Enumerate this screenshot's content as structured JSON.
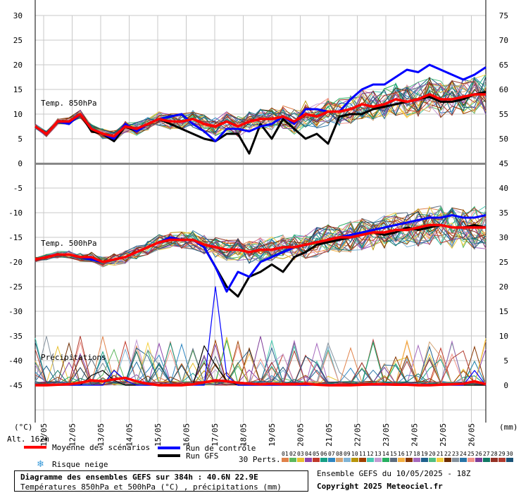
{
  "chart_data": {
    "type": "line",
    "title": "Diagramme des ensembles GEFS sur 384h : 40.6N 22.9E",
    "subtitle": "Températures 850hPa et 500hPa (°C) , précipitations (mm)",
    "run_info": "Ensemble GEFS du 10/05/2025 - 18Z",
    "copyright": "Copyright 2025 Meteociel.fr",
    "x_tick_labels": [
      "11/05",
      "12/05",
      "13/05",
      "14/05",
      "15/05",
      "16/05",
      "17/05",
      "18/05",
      "19/05",
      "20/05",
      "21/05",
      "22/05",
      "23/05",
      "24/05",
      "25/05",
      "26/05"
    ],
    "left_axis_ticks": [
      "30",
      "25",
      "20",
      "15",
      "10",
      "5",
      "0",
      "-5",
      "-10",
      "-15",
      "-20",
      "-25",
      "-30",
      "-35",
      "-40",
      "-45"
    ],
    "right_axis_ticks": [
      "75",
      "70",
      "65",
      "60",
      "55",
      "50",
      "45",
      "40",
      "35",
      "30",
      "25",
      "20",
      "15",
      "10",
      "5",
      "0"
    ],
    "left_unit": "(°C)",
    "right_unit": "(mm)",
    "altitude": "Alt. 162m",
    "panel_labels": {
      "t850": "Temp. 850hPa",
      "t500": "Temp. 500hPa",
      "precip": "Précipitations"
    },
    "legend": {
      "mean": "Moyenne des scénarios",
      "control": "Run de contrôle",
      "gfs": "Run GFS",
      "snow": "Risque neige",
      "members_label": "30 Perts.",
      "member_ids": [
        "01",
        "02",
        "03",
        "04",
        "05",
        "06",
        "07",
        "08",
        "09",
        "10",
        "11",
        "12",
        "13",
        "14",
        "15",
        "16",
        "17",
        "18",
        "19",
        "20",
        "21",
        "22",
        "23",
        "24",
        "25",
        "26",
        "27",
        "28",
        "29",
        "30"
      ]
    },
    "colors": {
      "mean": "#ff0000",
      "control": "#0000ff",
      "gfs": "#000000",
      "members": [
        "#e0824a",
        "#5cb85c",
        "#e8c030",
        "#8e44ad",
        "#c0392b",
        "#16a085",
        "#2e86c1",
        "#d4a373",
        "#7fb3d5",
        "#b7950b",
        "#a04000",
        "#48c9b0",
        "#c39bd3",
        "#27ae60",
        "#5d6d7e",
        "#f5b041",
        "#873600",
        "#a569bd",
        "#1f618d",
        "#52be80",
        "#f4d03f",
        "#6e2c00",
        "#85929e",
        "#2874a6",
        "#f1948a",
        "#7d3c98",
        "#117864",
        "#943126",
        "#b03a2e",
        "#1a5276"
      ]
    },
    "series": [
      {
        "name": "Moyenne des scénarios",
        "panel": "t850",
        "values": [
          7.5,
          6,
          8.5,
          8.5,
          10,
          7,
          6,
          5.5,
          7.5,
          7,
          8,
          9,
          8.5,
          8.5,
          9,
          8,
          7.5,
          8.5,
          7.5,
          8.5,
          9,
          9,
          9.5,
          8.5,
          10,
          9.5,
          10.5,
          10.5,
          11,
          12,
          11.5,
          12,
          13,
          12.5,
          13,
          14,
          13,
          13,
          13.5,
          14,
          14
        ]
      },
      {
        "name": "Run de contrôle",
        "panel": "t850",
        "values": [
          7.5,
          6,
          8.5,
          8,
          10,
          7,
          6,
          5,
          8,
          6.5,
          8,
          9,
          9.5,
          10,
          8,
          6.5,
          4.5,
          7,
          7,
          6.5,
          7.5,
          8,
          9.5,
          8,
          11,
          11,
          10.5,
          10.5,
          13,
          15,
          16,
          16,
          17.5,
          19,
          18.5,
          20,
          19,
          18,
          17,
          18,
          19.5
        ]
      },
      {
        "name": "Run GFS",
        "panel": "t850",
        "values": [
          7.5,
          6,
          8.5,
          8,
          10,
          6.5,
          6,
          4.5,
          7.5,
          6.5,
          8,
          9,
          8,
          7,
          6,
          5,
          4.5,
          6,
          6,
          2,
          8,
          5,
          9,
          7,
          5,
          6,
          4,
          9.5,
          10,
          10,
          11,
          11.5,
          12,
          12.5,
          13,
          13.5,
          12.5,
          12.5,
          13,
          14,
          14.5
        ]
      },
      {
        "name": "Moyenne des scénarios",
        "panel": "t500",
        "values": [
          -19.5,
          -19,
          -18.5,
          -18.5,
          -19,
          -19,
          -20,
          -19.5,
          -19,
          -18,
          -17,
          -16,
          -15.5,
          -15.5,
          -15.5,
          -16.5,
          -17,
          -17.5,
          -17.5,
          -18,
          -17.5,
          -17.5,
          -17,
          -17,
          -16.5,
          -16,
          -15.5,
          -15,
          -15,
          -14.5,
          -14,
          -14,
          -13.5,
          -13.5,
          -13,
          -12.5,
          -12.5,
          -13,
          -13,
          -13,
          -13
        ]
      },
      {
        "name": "Run de contrôle",
        "panel": "t500",
        "values": [
          -19.5,
          -19,
          -18.5,
          -18.5,
          -19,
          -19.5,
          -20,
          -19.5,
          -19,
          -18,
          -17,
          -16,
          -15,
          -15.5,
          -15.5,
          -17,
          -21,
          -26,
          -22,
          -23,
          -20,
          -19,
          -18,
          -17,
          -16.5,
          -16,
          -15.5,
          -15,
          -14.5,
          -14,
          -13.5,
          -13,
          -12.5,
          -12,
          -11.5,
          -11,
          -11,
          -10.5,
          -11,
          -11,
          -10.5
        ]
      },
      {
        "name": "Run GFS",
        "panel": "t500",
        "values": [
          -19.5,
          -19,
          -18.5,
          -18.5,
          -19,
          -19.5,
          -20,
          -19.5,
          -19,
          -18,
          -17,
          -16,
          -15,
          -15.5,
          -15.5,
          -17,
          -21,
          -25,
          -27,
          -23,
          -22,
          -20.5,
          -22,
          -19,
          -18,
          -16.5,
          -16,
          -15.5,
          -15,
          -14.5,
          -14,
          -14.5,
          -14,
          -13,
          -13.5,
          -13,
          -12.5,
          -13,
          -13,
          -12.5,
          -13
        ]
      },
      {
        "name": "Moyenne des scénarios",
        "panel": "precip",
        "values": [
          0,
          0,
          0.1,
          0.2,
          0.5,
          1,
          0.8,
          1.2,
          1.5,
          0.8,
          0.3,
          0,
          0,
          0,
          0.2,
          0.6,
          1,
          0.8,
          0.5,
          0.3,
          0.2,
          0.3,
          0.2,
          0.2,
          0.3,
          0.1,
          0,
          0,
          0,
          0.1,
          0.2,
          0.2,
          0.1,
          0.1,
          0,
          0,
          0.1,
          0.2,
          0.3,
          0.8,
          0.2
        ]
      },
      {
        "name": "Run de contrôle",
        "panel": "precip",
        "values": [
          0,
          0,
          0,
          0,
          0,
          0,
          0,
          3,
          1,
          0,
          0,
          0,
          0,
          0,
          0,
          0,
          20,
          2,
          0,
          0,
          0,
          0,
          0,
          0,
          0,
          0,
          0,
          0,
          0,
          0,
          0,
          0,
          0,
          0,
          0,
          0,
          0,
          0,
          0,
          3,
          0
        ]
      },
      {
        "name": "Run GFS",
        "panel": "precip",
        "values": [
          0,
          0,
          0,
          0,
          0,
          2,
          3,
          1,
          0,
          0,
          0,
          0,
          0,
          0,
          0,
          8,
          4,
          1,
          0,
          0,
          0,
          0,
          0,
          0,
          0,
          0,
          0,
          0,
          0,
          0,
          0,
          0,
          0,
          0,
          0,
          0,
          0,
          0,
          0,
          0,
          0
        ]
      }
    ]
  }
}
